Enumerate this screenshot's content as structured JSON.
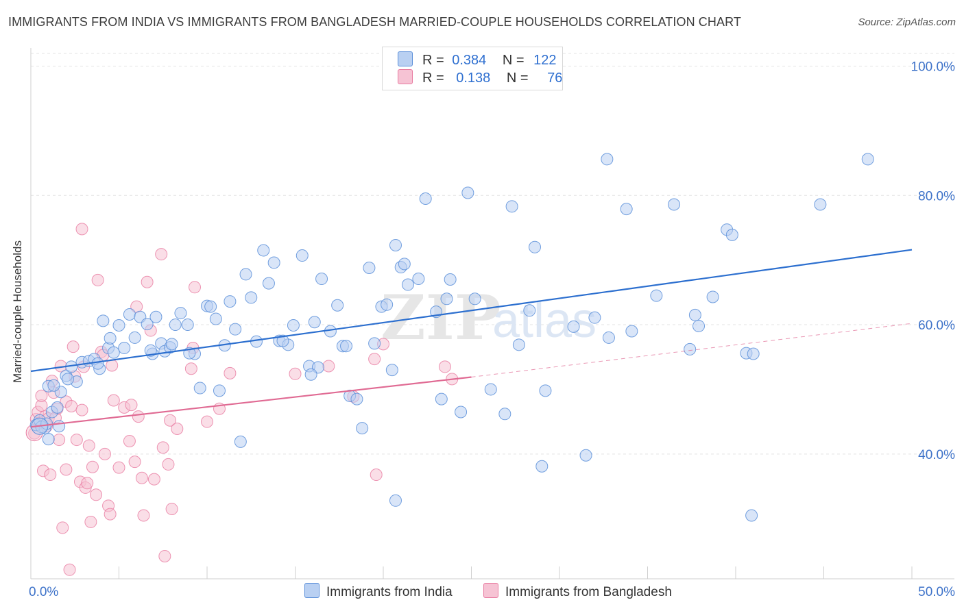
{
  "title": "IMMIGRANTS FROM INDIA VS IMMIGRANTS FROM BANGLADESH MARRIED-COUPLE HOUSEHOLDS CORRELATION CHART",
  "source": "Source: ZipAtlas.com",
  "legend": {
    "india": {
      "r_label": "R =",
      "r_value": "0.384",
      "n_label": "N =",
      "n_value": "122"
    },
    "bangladesh": {
      "r_label": "R =",
      "r_value": "0.138",
      "n_label": "N =",
      "n_value": "76"
    }
  },
  "bottom_legend": {
    "india": "Immigrants from India",
    "bangladesh": "Immigrants from Bangladesh"
  },
  "watermark": {
    "zip": "ZIP",
    "atlas": "atlas"
  },
  "colors": {
    "india": "#5b8fd9",
    "india_fill": "#b9d0f2",
    "bangladesh": "#e87aa0",
    "bangladesh_fill": "#f6c3d4",
    "india_line": "#2c6fcf",
    "bangladesh_line": "#e06a93",
    "axis_label": "#3d72c9"
  },
  "chart_data": {
    "type": "scatter",
    "title": "IMMIGRANTS FROM INDIA VS IMMIGRANTS FROM BANGLADESH MARRIED-COUPLE HOUSEHOLDS CORRELATION CHART",
    "xlabel": "",
    "ylabel": "Married-couple Households",
    "xlim": [
      0,
      50
    ],
    "ylim": [
      20,
      102
    ],
    "x_tick_labels": [
      "0.0%",
      "50.0%"
    ],
    "y_ticks": [
      40,
      60,
      80,
      100
    ],
    "y_tick_labels": [
      "40.0%",
      "60.0%",
      "80.0%",
      "100.0%"
    ],
    "series": [
      {
        "name": "Immigrants from India",
        "regression": {
          "x": [
            0,
            50
          ],
          "y": [
            52.8,
            71.6
          ]
        },
        "points": [
          [
            0.3,
            44.5
          ],
          [
            0.5,
            45.2
          ],
          [
            0.8,
            44.0
          ],
          [
            1.0,
            42.3
          ],
          [
            1.2,
            46.5
          ],
          [
            1.5,
            47.2
          ],
          [
            1.0,
            50.5
          ],
          [
            1.7,
            49.6
          ],
          [
            2.0,
            52.1
          ],
          [
            2.3,
            53.5
          ],
          [
            2.6,
            51.2
          ],
          [
            2.9,
            54.2
          ],
          [
            3.3,
            54.4
          ],
          [
            3.6,
            54.7
          ],
          [
            3.9,
            53.2
          ],
          [
            4.1,
            60.6
          ],
          [
            4.4,
            56.4
          ],
          [
            4.5,
            57.9
          ],
          [
            4.7,
            55.7
          ],
          [
            5.0,
            59.9
          ],
          [
            5.3,
            56.4
          ],
          [
            5.6,
            61.6
          ],
          [
            5.9,
            58.0
          ],
          [
            6.2,
            61.2
          ],
          [
            6.6,
            60.1
          ],
          [
            6.9,
            55.5
          ],
          [
            7.1,
            61.2
          ],
          [
            7.4,
            57.1
          ],
          [
            7.6,
            55.9
          ],
          [
            7.9,
            56.5
          ],
          [
            8.2,
            60.0
          ],
          [
            8.5,
            61.8
          ],
          [
            8.9,
            60.0
          ],
          [
            9.3,
            55.5
          ],
          [
            9.6,
            50.2
          ],
          [
            10.0,
            62.9
          ],
          [
            10.2,
            62.8
          ],
          [
            10.5,
            60.9
          ],
          [
            10.7,
            49.8
          ],
          [
            11.0,
            56.8
          ],
          [
            11.3,
            63.6
          ],
          [
            11.6,
            59.3
          ],
          [
            11.9,
            41.9
          ],
          [
            12.2,
            67.8
          ],
          [
            12.5,
            64.2
          ],
          [
            12.8,
            57.4
          ],
          [
            13.2,
            71.5
          ],
          [
            13.5,
            66.4
          ],
          [
            13.8,
            69.6
          ],
          [
            14.1,
            57.5
          ],
          [
            14.6,
            56.9
          ],
          [
            14.9,
            59.9
          ],
          [
            15.4,
            70.7
          ],
          [
            15.8,
            53.6
          ],
          [
            16.1,
            60.4
          ],
          [
            16.5,
            67.1
          ],
          [
            17.0,
            59.0
          ],
          [
            17.4,
            63.0
          ],
          [
            17.7,
            56.7
          ],
          [
            18.1,
            49.0
          ],
          [
            18.5,
            48.5
          ],
          [
            18.8,
            44.0
          ],
          [
            19.2,
            68.8
          ],
          [
            19.5,
            57.1
          ],
          [
            19.9,
            62.8
          ],
          [
            20.2,
            63.1
          ],
          [
            20.7,
            72.3
          ],
          [
            20.5,
            53.0
          ],
          [
            21.0,
            68.9
          ],
          [
            21.2,
            69.4
          ],
          [
            21.4,
            66.2
          ],
          [
            22.0,
            67.1
          ],
          [
            22.4,
            79.5
          ],
          [
            23.0,
            62.0
          ],
          [
            23.3,
            48.5
          ],
          [
            23.6,
            64.0
          ],
          [
            23.8,
            67.0
          ],
          [
            24.4,
            46.5
          ],
          [
            24.8,
            80.4
          ],
          [
            25.2,
            64.0
          ],
          [
            26.1,
            50.0
          ],
          [
            26.9,
            46.2
          ],
          [
            27.3,
            78.3
          ],
          [
            27.7,
            56.9
          ],
          [
            28.3,
            62.2
          ],
          [
            28.6,
            72.0
          ],
          [
            29.0,
            38.1
          ],
          [
            29.2,
            49.8
          ],
          [
            30.8,
            59.7
          ],
          [
            31.5,
            39.8
          ],
          [
            32.0,
            61.1
          ],
          [
            32.8,
            58.0
          ],
          [
            32.7,
            85.6
          ],
          [
            33.8,
            77.9
          ],
          [
            34.1,
            59.0
          ],
          [
            35.5,
            64.5
          ],
          [
            36.5,
            78.6
          ],
          [
            37.4,
            56.2
          ],
          [
            37.7,
            61.5
          ],
          [
            37.9,
            59.8
          ],
          [
            38.7,
            64.3
          ],
          [
            39.5,
            74.7
          ],
          [
            39.8,
            73.9
          ],
          [
            40.6,
            55.6
          ],
          [
            40.9,
            30.5
          ],
          [
            41.0,
            55.5
          ],
          [
            47.5,
            85.6
          ],
          [
            44.8,
            78.6
          ],
          [
            20.7,
            32.8
          ],
          [
            16.3,
            53.4
          ],
          [
            15.9,
            52.3
          ],
          [
            14.3,
            57.5
          ],
          [
            17.9,
            56.7
          ],
          [
            9.0,
            55.6
          ],
          [
            8.0,
            57.0
          ],
          [
            6.8,
            56.0
          ],
          [
            3.8,
            54.0
          ],
          [
            2.1,
            51.6
          ],
          [
            1.3,
            50.6
          ],
          [
            0.6,
            44.2
          ],
          [
            0.9,
            44.7
          ],
          [
            1.6,
            44.3
          ]
        ]
      },
      {
        "name": "Immigrants from Bangladesh",
        "regression": {
          "x": [
            0,
            25
          ],
          "y": [
            44.2,
            51.9
          ],
          "dashed_extension": {
            "x": [
              25,
              50
            ],
            "y": [
              51.9,
              60.2
            ]
          }
        },
        "points": [
          [
            0.2,
            43.2
          ],
          [
            0.3,
            45.4
          ],
          [
            0.4,
            46.5
          ],
          [
            0.5,
            44.8
          ],
          [
            0.6,
            47.5
          ],
          [
            0.6,
            49.0
          ],
          [
            0.7,
            37.4
          ],
          [
            0.8,
            45.8
          ],
          [
            0.9,
            44.3
          ],
          [
            1.0,
            45.5
          ],
          [
            1.1,
            36.8
          ],
          [
            1.2,
            51.3
          ],
          [
            1.3,
            49.5
          ],
          [
            1.4,
            45.6
          ],
          [
            1.5,
            47.0
          ],
          [
            1.6,
            42.2
          ],
          [
            1.7,
            53.6
          ],
          [
            1.8,
            28.6
          ],
          [
            2.0,
            48.1
          ],
          [
            2.0,
            37.6
          ],
          [
            2.2,
            22.1
          ],
          [
            2.3,
            47.4
          ],
          [
            2.4,
            56.6
          ],
          [
            2.5,
            52.0
          ],
          [
            2.6,
            42.2
          ],
          [
            2.8,
            35.7
          ],
          [
            2.9,
            46.8
          ],
          [
            2.9,
            74.8
          ],
          [
            3.0,
            53.5
          ],
          [
            3.1,
            34.8
          ],
          [
            3.2,
            35.5
          ],
          [
            3.3,
            41.3
          ],
          [
            3.4,
            29.5
          ],
          [
            3.5,
            38.0
          ],
          [
            3.7,
            33.7
          ],
          [
            3.8,
            66.9
          ],
          [
            4.0,
            55.8
          ],
          [
            4.1,
            55.3
          ],
          [
            4.2,
            40.0
          ],
          [
            4.4,
            32.0
          ],
          [
            4.5,
            30.7
          ],
          [
            4.6,
            53.7
          ],
          [
            4.7,
            48.3
          ],
          [
            5.0,
            37.9
          ],
          [
            5.3,
            47.2
          ],
          [
            5.6,
            42.0
          ],
          [
            5.7,
            47.6
          ],
          [
            5.9,
            38.8
          ],
          [
            6.1,
            45.8
          ],
          [
            6.3,
            36.3
          ],
          [
            6.4,
            30.5
          ],
          [
            6.6,
            66.6
          ],
          [
            6.8,
            59.1
          ],
          [
            7.0,
            36.1
          ],
          [
            7.4,
            70.9
          ],
          [
            7.5,
            41.0
          ],
          [
            7.6,
            24.2
          ],
          [
            7.8,
            38.4
          ],
          [
            7.9,
            45.2
          ],
          [
            8.0,
            31.5
          ],
          [
            8.3,
            43.9
          ],
          [
            9.1,
            53.2
          ],
          [
            9.3,
            65.8
          ],
          [
            9.2,
            56.4
          ],
          [
            10.0,
            45.0
          ],
          [
            10.7,
            47.0
          ],
          [
            11.3,
            52.5
          ],
          [
            15.0,
            52.4
          ],
          [
            16.9,
            53.6
          ],
          [
            18.3,
            48.9
          ],
          [
            19.5,
            54.7
          ],
          [
            19.6,
            36.8
          ],
          [
            20.0,
            57.0
          ],
          [
            23.5,
            53.5
          ],
          [
            23.9,
            51.6
          ],
          [
            6.0,
            62.8
          ]
        ]
      }
    ]
  }
}
